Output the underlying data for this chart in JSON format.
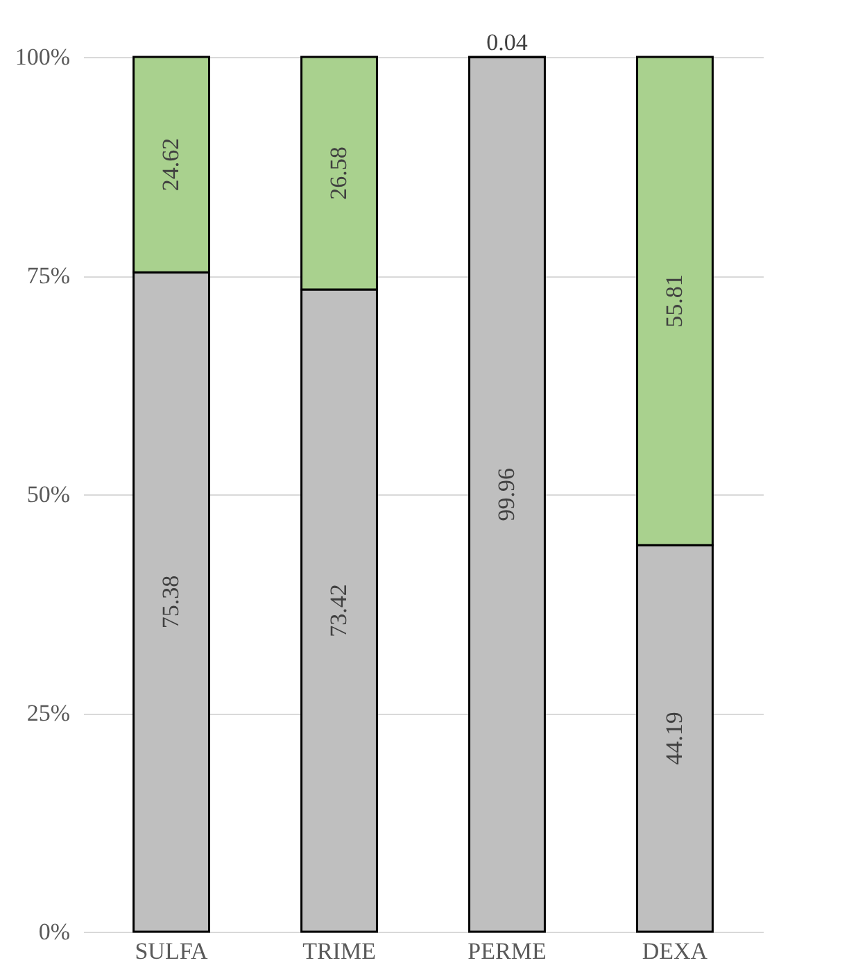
{
  "chart_data": {
    "type": "bar",
    "stacked": true,
    "categories": [
      "SULFA",
      "TRIME",
      "PERME",
      "DEXA"
    ],
    "series": [
      {
        "color": "#bfbfbf",
        "values": [
          75.38,
          73.42,
          99.96,
          44.19
        ]
      },
      {
        "color": "#a9d18e",
        "values": [
          24.62,
          26.58,
          0.04,
          55.81
        ]
      }
    ],
    "ylim": [
      0,
      100
    ],
    "yticks": [
      {
        "value": 0,
        "label": "0%"
      },
      {
        "value": 25,
        "label": "25%"
      },
      {
        "value": 50,
        "label": "50%"
      },
      {
        "value": 75,
        "label": "75%"
      },
      {
        "value": 100,
        "label": "100%"
      }
    ],
    "grid": "y",
    "data_labels": true
  }
}
